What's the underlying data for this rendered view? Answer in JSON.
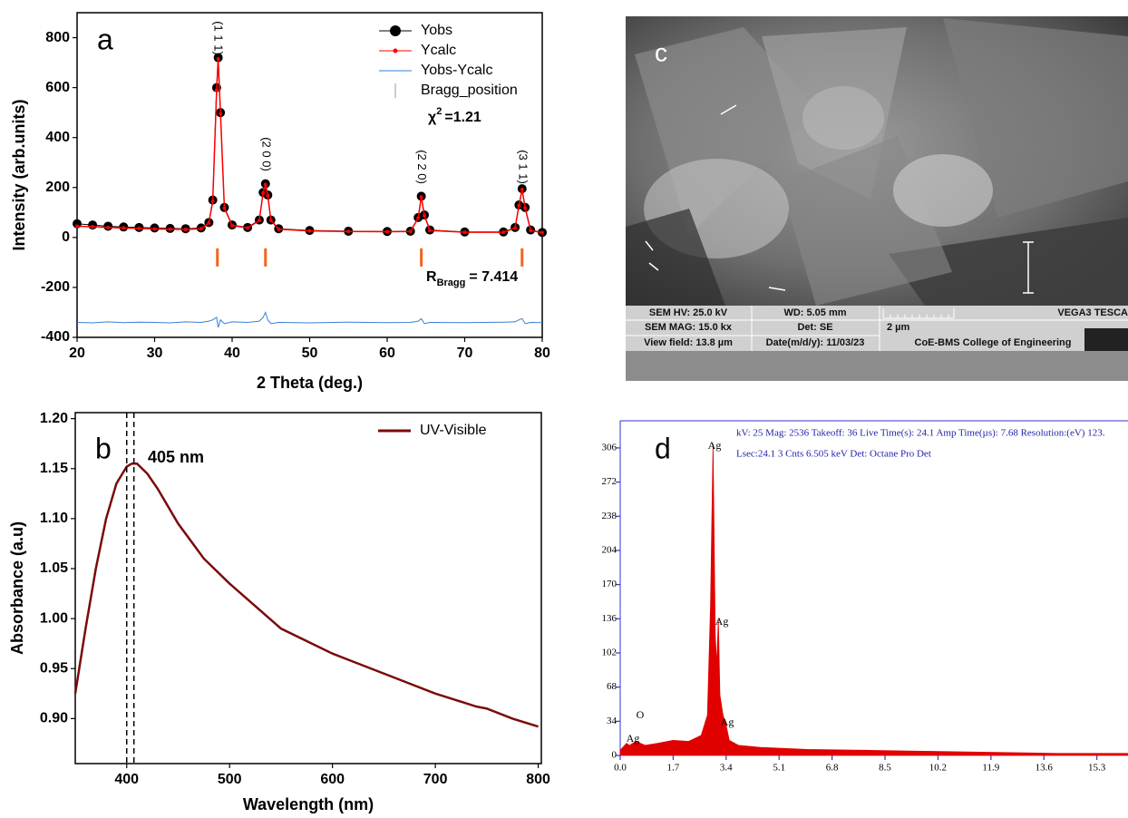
{
  "chart_data": [
    {
      "type": "line",
      "label": "a",
      "xlabel": "2 Theta (deg.)",
      "ylabel": "Intensity (arb.units)",
      "xlim": [
        20,
        80
      ],
      "xticks": [
        20,
        30,
        40,
        50,
        60,
        70,
        80
      ],
      "ylim": [
        -400,
        900
      ],
      "yticks": [
        -400,
        -200,
        0,
        200,
        400,
        600,
        800
      ],
      "legend": "upper right",
      "x": [
        20,
        22,
        24,
        26,
        28,
        30,
        32,
        34,
        36,
        37,
        37.5,
        38,
        38.2,
        38.5,
        39,
        40,
        42,
        43.5,
        44,
        44.3,
        44.6,
        45,
        46,
        50,
        55,
        60,
        63,
        64,
        64.4,
        64.8,
        65.5,
        70,
        75,
        76.5,
        77,
        77.4,
        77.8,
        78.5,
        80
      ],
      "series": [
        {
          "name": "Yobs",
          "color": "#000000",
          "marker": "circle",
          "values": [
            55,
            50,
            45,
            42,
            40,
            38,
            36,
            35,
            38,
            60,
            150,
            600,
            720,
            500,
            120,
            50,
            40,
            70,
            180,
            215,
            170,
            70,
            35,
            28,
            25,
            24,
            25,
            80,
            165,
            90,
            30,
            22,
            22,
            40,
            130,
            195,
            120,
            30,
            20
          ]
        },
        {
          "name": "Ycalc",
          "color": "#ff0000",
          "marker": "dot",
          "values": [
            45,
            43,
            40,
            38,
            36,
            34,
            33,
            32,
            35,
            58,
            145,
            590,
            715,
            495,
            118,
            48,
            38,
            68,
            178,
            212,
            168,
            68,
            33,
            26,
            24,
            23,
            24,
            78,
            162,
            88,
            28,
            21,
            21,
            38,
            128,
            192,
            118,
            28,
            19
          ]
        },
        {
          "name": "Yobs-Ycalc",
          "color": "#3a7fd5",
          "marker": "none",
          "values": [
            -340,
            -342,
            -338,
            -341,
            -339,
            -340,
            -342,
            -338,
            -340,
            -335,
            -330,
            -320,
            -360,
            -330,
            -345,
            -338,
            -340,
            -335,
            -320,
            -300,
            -330,
            -345,
            -340,
            -342,
            -339,
            -341,
            -340,
            -335,
            -325,
            -345,
            -340,
            -341,
            -339,
            -338,
            -330,
            -325,
            -345,
            -340,
            -341
          ]
        },
        {
          "name": "Bragg_position",
          "color": "#f26522",
          "marker": "vline",
          "x": [
            38.1,
            44.3,
            64.4,
            77.4
          ],
          "values": [
            -80,
            -80,
            -80,
            -80
          ]
        }
      ],
      "peak_labels": [
        "(1 1 1)",
        "(2 0 0)",
        "(2 2 0)",
        "(3 1 1)"
      ],
      "chi_squared": {
        "symbol": "χ",
        "power": "2",
        "text": "=1.21"
      },
      "r_bragg": {
        "symbol": "R",
        "subscript": "Bragg",
        "text": "= 7.414"
      }
    },
    {
      "type": "line",
      "label": "b",
      "xlabel": "Wavelength (nm)",
      "ylabel": "Absorbance (a.u)",
      "xlim": [
        350,
        803
      ],
      "xticks": [
        400,
        500,
        600,
        700,
        800
      ],
      "ylim": [
        0.855,
        1.206
      ],
      "yticks": [
        {
          "value": 0.9,
          "label": "0.90"
        },
        0.95,
        {
          "value": 1,
          "label": "1.00"
        },
        1.05,
        {
          "value": 1.1,
          "label": "1.10"
        },
        1.15,
        {
          "value": 1.2,
          "label": "1.20"
        }
      ],
      "legend": "upper right",
      "x": [
        350,
        360,
        370,
        380,
        390,
        400,
        405,
        410,
        420,
        430,
        450,
        475,
        500,
        550,
        600,
        650,
        700,
        740,
        750,
        775,
        800
      ],
      "series": [
        {
          "name": "UV-Visible",
          "color": "#7b0a0a",
          "marker": "none",
          "values": [
            0.925,
            0.99,
            1.05,
            1.1,
            1.135,
            1.152,
            1.155,
            1.155,
            1.145,
            1.13,
            1.095,
            1.06,
            1.035,
            0.99,
            0.965,
            0.945,
            0.925,
            0.912,
            0.91,
            0.9,
            0.892
          ]
        }
      ],
      "vlines": [
        400,
        407
      ],
      "annotation": "405 nm"
    },
    {
      "type": "area",
      "label": "d",
      "color": "#e00000",
      "axis_color": "#3333cc",
      "header": [
        "kV: 25    Mag: 2536   Takeoff: 36    Live Time(s): 24.1    Amp Time(µs): 7.68   Resolution:(eV) 123.",
        "Lsec:24.1     3 Cnts       6.505 keV Det: Octane Pro Det"
      ],
      "xlim": [
        0,
        16.3
      ],
      "xticks": [
        {
          "value": 0,
          "label": "0.0"
        },
        1.7,
        3.4,
        5.1,
        6.8,
        8.5,
        10.2,
        11.9,
        13.6,
        15.3
      ],
      "ylim": [
        0,
        333
      ],
      "yticks": [
        0,
        34,
        68,
        102,
        136,
        170,
        204,
        238,
        272,
        306
      ],
      "x": [
        0,
        0.2,
        0.3,
        0.5,
        0.8,
        1.2,
        1.7,
        2.2,
        2.6,
        2.8,
        2.9,
        2.98,
        3.05,
        3.1,
        3.15,
        3.2,
        3.3,
        3.4,
        3.5,
        3.8,
        4.5,
        6,
        8,
        10,
        12,
        14,
        16.3
      ],
      "values": [
        5,
        12,
        10,
        14,
        10,
        12,
        15,
        14,
        20,
        40,
        150,
        310,
        120,
        90,
        135,
        60,
        40,
        30,
        15,
        10,
        8,
        6,
        5,
        4,
        3,
        2,
        2
      ],
      "peak_labels": [
        "Ag",
        "O",
        "Ag",
        "Ag",
        "Ag"
      ]
    }
  ],
  "sem_image": {
    "label": "c",
    "info": [
      [
        "SEM HV: 25.0 kV",
        "WD: 5.05 mm",
        "VEGA3 TESCA"
      ],
      [
        "SEM MAG: 15.0 kx",
        "Det: SE",
        "2 µm"
      ],
      [
        "View field: 13.8 µm",
        "Date(m/d/y): 11/03/23",
        "CoE-BMS College of Engineering"
      ]
    ]
  }
}
